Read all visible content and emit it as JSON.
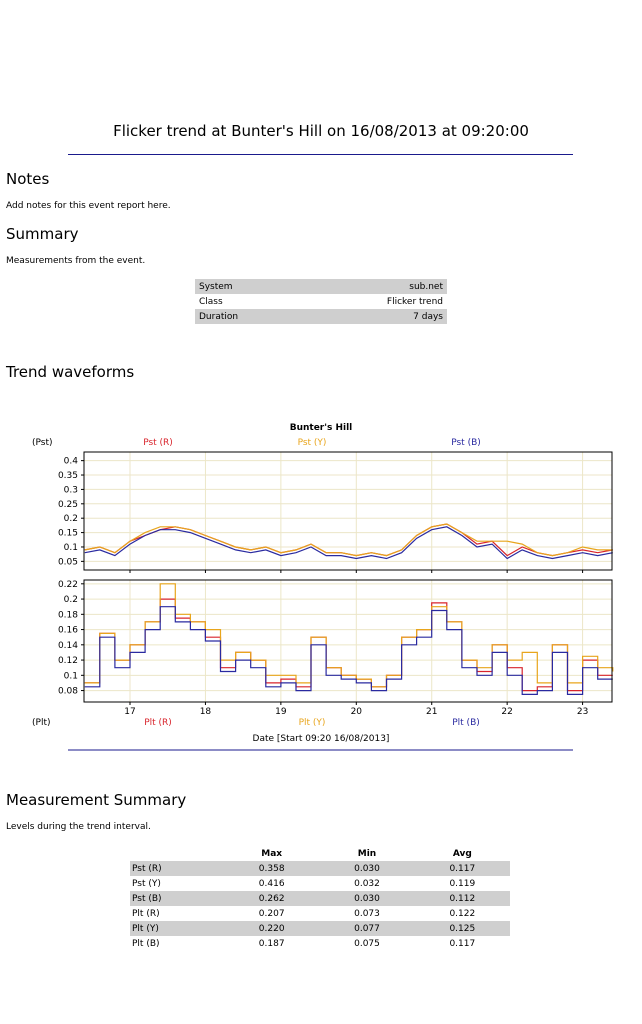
{
  "report": {
    "title": "Flicker trend at Bunter's Hill on 16/08/2013 at 09:20:00",
    "notes_heading": "Notes",
    "notes_text": "Add notes for this event report here.",
    "summary_heading": "Summary",
    "summary_text": "Measurements from the event.",
    "summary_rows": [
      {
        "label": "System",
        "value": "sub.net"
      },
      {
        "label": "Class",
        "value": "Flicker trend"
      },
      {
        "label": "Duration",
        "value": "7 days"
      }
    ],
    "trend_heading": "Trend waveforms",
    "measurement_heading": "Measurement Summary",
    "measurement_text": "Levels during the trend interval.",
    "measurement_columns": [
      "Max",
      "Min",
      "Avg"
    ],
    "measurement_rows": [
      {
        "label": "Pst (R)",
        "max": "0.358",
        "min": "0.030",
        "avg": "0.117"
      },
      {
        "label": "Pst (Y)",
        "max": "0.416",
        "min": "0.032",
        "avg": "0.119"
      },
      {
        "label": "Pst (B)",
        "max": "0.262",
        "min": "0.030",
        "avg": "0.112"
      },
      {
        "label": "Plt (R)",
        "max": "0.207",
        "min": "0.073",
        "avg": "0.122"
      },
      {
        "label": "Plt (Y)",
        "max": "0.220",
        "min": "0.077",
        "avg": "0.125"
      },
      {
        "label": "Plt (B)",
        "max": "0.187",
        "min": "0.075",
        "avg": "0.117"
      }
    ]
  },
  "colors": {
    "R": "#d8242c",
    "Y": "#e8a51c",
    "B": "#2a2aa0",
    "rule": "#1a1a8c",
    "grid": "#ece6c8"
  },
  "chart_data": [
    {
      "type": "line",
      "title": "Bunter's Hill",
      "ylabel": "(Pst)",
      "ylim": [
        0.02,
        0.43
      ],
      "yticks": [
        0.05,
        0.1,
        0.15,
        0.2,
        0.25,
        0.3,
        0.35,
        0.4
      ],
      "ytick_labels": [
        "0.05",
        "0.1",
        "0.15",
        "0.2",
        "0.25",
        "0.3",
        "0.35",
        "0.4"
      ],
      "xlim": [
        16.39,
        23.39
      ],
      "grid": true,
      "x": [
        16.4,
        16.6,
        16.8,
        17.0,
        17.2,
        17.4,
        17.6,
        17.8,
        18.0,
        18.2,
        18.4,
        18.6,
        18.8,
        19.0,
        19.2,
        19.4,
        19.6,
        19.8,
        20.0,
        20.2,
        20.4,
        20.6,
        20.8,
        21.0,
        21.2,
        21.4,
        21.6,
        21.8,
        22.0,
        22.2,
        22.4,
        22.6,
        22.8,
        23.0,
        23.2,
        23.4
      ],
      "series": [
        {
          "name": "Pst (R)",
          "values": [
            0.09,
            0.1,
            0.08,
            0.12,
            0.14,
            0.16,
            0.17,
            0.16,
            0.14,
            0.12,
            0.1,
            0.09,
            0.1,
            0.08,
            0.09,
            0.11,
            0.08,
            0.08,
            0.07,
            0.08,
            0.07,
            0.09,
            0.14,
            0.17,
            0.18,
            0.15,
            0.11,
            0.12,
            0.07,
            0.1,
            0.08,
            0.07,
            0.08,
            0.09,
            0.08,
            0.09
          ]
        },
        {
          "name": "Pst (Y)",
          "values": [
            0.09,
            0.1,
            0.08,
            0.12,
            0.15,
            0.17,
            0.17,
            0.16,
            0.14,
            0.12,
            0.1,
            0.09,
            0.1,
            0.08,
            0.09,
            0.11,
            0.08,
            0.08,
            0.07,
            0.08,
            0.07,
            0.09,
            0.14,
            0.17,
            0.18,
            0.15,
            0.12,
            0.12,
            0.12,
            0.11,
            0.08,
            0.07,
            0.08,
            0.1,
            0.09,
            0.09
          ]
        },
        {
          "name": "Pst (B)",
          "values": [
            0.08,
            0.09,
            0.07,
            0.11,
            0.14,
            0.16,
            0.16,
            0.15,
            0.13,
            0.11,
            0.09,
            0.08,
            0.09,
            0.07,
            0.08,
            0.1,
            0.07,
            0.07,
            0.06,
            0.07,
            0.06,
            0.08,
            0.13,
            0.16,
            0.17,
            0.14,
            0.1,
            0.11,
            0.06,
            0.09,
            0.07,
            0.06,
            0.07,
            0.08,
            0.07,
            0.08
          ]
        }
      ],
      "legend": [
        "Pst (R)",
        "Pst (Y)",
        "Pst (B)"
      ]
    },
    {
      "type": "line",
      "ylabel": "(Plt)",
      "xlabel": "Date [Start 09:20 16/08/2013]",
      "ylim": [
        0.065,
        0.225
      ],
      "yticks": [
        0.08,
        0.1,
        0.12,
        0.14,
        0.16,
        0.18,
        0.2,
        0.22
      ],
      "ytick_labels": [
        "0.08",
        "0.1",
        "0.12",
        "0.14",
        "0.16",
        "0.18",
        "0.2",
        "0.22"
      ],
      "xlim": [
        16.39,
        23.39
      ],
      "xticks": [
        17,
        18,
        19,
        20,
        21,
        22,
        23
      ],
      "xtick_labels": [
        "17",
        "18",
        "19",
        "20",
        "21",
        "22",
        "23"
      ],
      "grid": true,
      "x": [
        16.4,
        16.6,
        16.8,
        17.0,
        17.2,
        17.4,
        17.6,
        17.8,
        18.0,
        18.2,
        18.4,
        18.6,
        18.8,
        19.0,
        19.2,
        19.4,
        19.6,
        19.8,
        20.0,
        20.2,
        20.4,
        20.6,
        20.8,
        21.0,
        21.2,
        21.4,
        21.6,
        21.8,
        22.0,
        22.2,
        22.4,
        22.6,
        22.8,
        23.0,
        23.2,
        23.4
      ],
      "series": [
        {
          "name": "Plt (R)",
          "values": [
            0.09,
            0.155,
            0.12,
            0.14,
            0.17,
            0.2,
            0.175,
            0.17,
            0.15,
            0.11,
            0.13,
            0.12,
            0.09,
            0.095,
            0.085,
            0.15,
            0.11,
            0.1,
            0.095,
            0.085,
            0.1,
            0.15,
            0.16,
            0.195,
            0.17,
            0.12,
            0.105,
            0.14,
            0.11,
            0.08,
            0.085,
            0.14,
            0.08,
            0.12,
            0.1,
            0.1
          ]
        },
        {
          "name": "Plt (Y)",
          "values": [
            0.09,
            0.155,
            0.12,
            0.14,
            0.17,
            0.22,
            0.18,
            0.17,
            0.16,
            0.12,
            0.13,
            0.12,
            0.1,
            0.1,
            0.09,
            0.15,
            0.11,
            0.1,
            0.095,
            0.085,
            0.1,
            0.15,
            0.16,
            0.19,
            0.17,
            0.12,
            0.11,
            0.14,
            0.12,
            0.13,
            0.09,
            0.14,
            0.09,
            0.125,
            0.11,
            0.105
          ]
        },
        {
          "name": "Plt (B)",
          "values": [
            0.085,
            0.15,
            0.11,
            0.13,
            0.16,
            0.19,
            0.17,
            0.16,
            0.145,
            0.105,
            0.12,
            0.11,
            0.085,
            0.09,
            0.08,
            0.14,
            0.1,
            0.095,
            0.09,
            0.08,
            0.095,
            0.14,
            0.15,
            0.185,
            0.16,
            0.11,
            0.1,
            0.13,
            0.1,
            0.075,
            0.08,
            0.13,
            0.075,
            0.11,
            0.095,
            0.095
          ]
        }
      ],
      "legend": [
        "Plt (R)",
        "Plt (Y)",
        "Plt (B)"
      ]
    }
  ]
}
